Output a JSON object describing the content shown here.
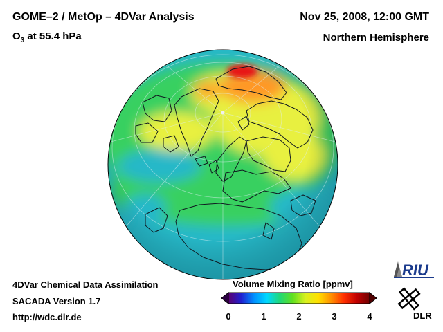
{
  "header": {
    "title": "GOME–2 / MetOp – 4DVar Analysis",
    "species": "O",
    "species_sub": "3",
    "level": " at 55.4 hPa",
    "date": "Nov 25, 2008, 12:00 GMT",
    "region": "Northern Hemisphere"
  },
  "footer": {
    "line1": "4DVar Chemical Data Assimilation",
    "line2": "SACADA Version 1.7",
    "line3": "http://wdc.dlr.de"
  },
  "colorbar": {
    "title": "Volume Mixing Ratio [ppmv]",
    "ticks": [
      "0",
      "1",
      "2",
      "3",
      "4"
    ],
    "range": [
      0,
      4
    ],
    "colors": [
      "#5a0070",
      "#2020d0",
      "#0090ff",
      "#00d8ff",
      "#20d878",
      "#60e020",
      "#d8f020",
      "#ffe000",
      "#ff9000",
      "#ff3000",
      "#c00000",
      "#700000"
    ]
  },
  "logos": {
    "riu": "RIU",
    "dlr": "DLR"
  },
  "map": {
    "projection": "orthographic",
    "hemisphere": "Northern Hemisphere",
    "colors": {
      "base": "#28b8c8",
      "green": "#38d060",
      "yellow": "#e8f040",
      "orange": "#ff9828",
      "red": "#e81818"
    }
  }
}
